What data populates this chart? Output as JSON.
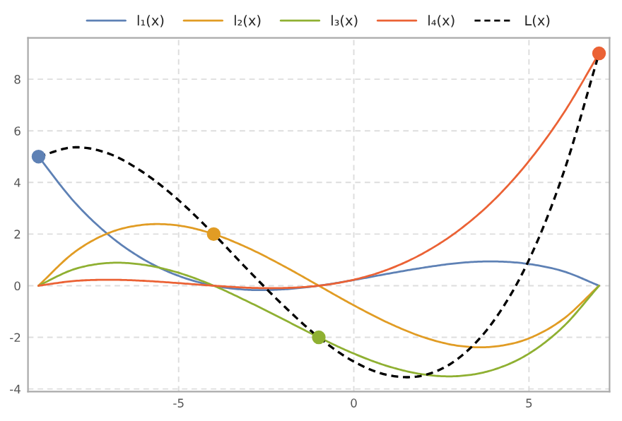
{
  "chart_data": {
    "type": "line",
    "x": [
      -9,
      -8,
      -7,
      -6,
      -5,
      -4,
      -3,
      -2,
      -1,
      0,
      1,
      2,
      3,
      4,
      5,
      6,
      7
    ],
    "series": [
      {
        "name": "l₁(x)",
        "color": "#5e81b5",
        "values": [
          5,
          3.28,
          1.97,
          1.02,
          0.38,
          0,
          -0.16,
          -0.14,
          0,
          0.22,
          0.47,
          0.7,
          0.88,
          0.94,
          0.84,
          0.55,
          0
        ]
      },
      {
        "name": "l₂(x)",
        "color": "#e19c24",
        "values": [
          0,
          1.27,
          2.04,
          2.36,
          2.33,
          2,
          1.45,
          0.76,
          0,
          -0.76,
          -1.45,
          -2,
          -2.33,
          -2.36,
          -2.04,
          -1.27,
          0
        ]
      },
      {
        "name": "l₃(x)",
        "color": "#8fb032",
        "values": [
          0,
          0.63,
          0.88,
          0.81,
          0.5,
          0,
          -0.63,
          -1.31,
          -2,
          -2.63,
          -3.13,
          -3.44,
          -3.5,
          -3.25,
          -2.63,
          -1.56,
          0
        ]
      },
      {
        "name": "l₄(x)",
        "color": "#eb6235",
        "values": [
          0,
          0.18,
          0.23,
          0.19,
          0.1,
          0,
          -0.08,
          -0.09,
          0,
          0.23,
          0.64,
          1.27,
          2.15,
          3.32,
          4.83,
          6.71,
          9
        ]
      },
      {
        "name": "L(x)",
        "color": "#000000",
        "line_style": "dashed",
        "values": [
          5,
          5.36,
          5.12,
          4.38,
          3.31,
          2,
          0.58,
          -0.78,
          -2,
          -2.94,
          -3.47,
          -3.47,
          -2.8,
          -1.35,
          1,
          4.43,
          9
        ]
      },
      {
        "type": "scatter",
        "x": [
          -9,
          -4,
          -1,
          7
        ],
        "values": [
          5,
          2,
          -2,
          9
        ],
        "colors": [
          "#5e81b5",
          "#e19c24",
          "#8fb032",
          "#eb6235"
        ],
        "marker": "circle"
      }
    ],
    "xlim": [
      -9.3,
      7.3
    ],
    "ylim": [
      -4.1,
      9.6
    ],
    "xticks": [
      -5,
      0,
      5
    ],
    "yticks": [
      -4,
      -2,
      0,
      2,
      4,
      6,
      8
    ],
    "grid": true,
    "legend": "top"
  }
}
